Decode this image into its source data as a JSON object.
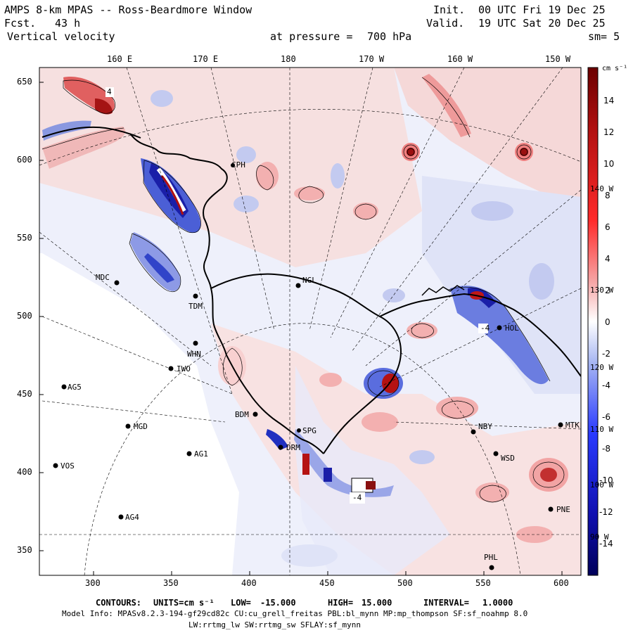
{
  "header": {
    "title": "AMPS 8-km MPAS -- Ross-Beardmore Window",
    "fcst_label": "Fcst.",
    "fcst_value": "43 h",
    "field": "Vertical velocity",
    "init_label": "Init.",
    "init_value": "00 UTC Fri 19 Dec 25",
    "valid_label": "Valid.",
    "valid_value": "19 UTC Sat 20 Dec 25",
    "pressure_label": "at pressure =",
    "pressure_value": "700 hPa",
    "smooth_label": "sm= 5"
  },
  "top_longitude_labels": [
    "160 E",
    "170 E",
    "180",
    "170 W",
    "160 W",
    "150 W"
  ],
  "right_longitude_labels": [
    "140 W",
    "130 W",
    "120 W",
    "110 W",
    "100 W",
    "90 W"
  ],
  "y_axis_ticks": [
    "650",
    "600",
    "550",
    "500",
    "450",
    "400",
    "350"
  ],
  "x_axis_ticks": [
    "300",
    "350",
    "400",
    "450",
    "500",
    "550",
    "600"
  ],
  "colorbar": {
    "units": "cm s⁻¹",
    "ticks": [
      "14",
      "12",
      "10",
      "8",
      "6",
      "4",
      "2",
      "0",
      "-2",
      "-4",
      "-6",
      "-8",
      "-10",
      "-12",
      "-14"
    ],
    "negative_color": "#0b1f8f",
    "positive_color": "#8c0c0c",
    "neutral_color": "#ffffff"
  },
  "stations": [
    {
      "name": "CPH"
    },
    {
      "name": "MDC"
    },
    {
      "name": "TDM"
    },
    {
      "name": "NGL"
    },
    {
      "name": "WHN"
    },
    {
      "name": "IWO"
    },
    {
      "name": "AG5"
    },
    {
      "name": "BDM"
    },
    {
      "name": "SPG"
    },
    {
      "name": "MGD"
    },
    {
      "name": "DRM"
    },
    {
      "name": "AG1"
    },
    {
      "name": "VOS"
    },
    {
      "name": "AG4"
    },
    {
      "name": "NBY"
    },
    {
      "name": "MTK"
    },
    {
      "name": "WSD"
    },
    {
      "name": "PNE"
    },
    {
      "name": "PHL"
    },
    {
      "name": "HOL"
    }
  ],
  "contour_labels": [
    "4",
    "-4",
    "-4"
  ],
  "footer": {
    "contours_label": "CONTOURS:",
    "units_label": "UNITS=cm s⁻¹",
    "low_label": "LOW=",
    "low_value": "-15.000",
    "high_label": "HIGH=",
    "high_value": "15.000",
    "interval_label": "INTERVAL=",
    "interval_value": "1.0000",
    "model_info": "Model Info: MPASv8.2.3-194-gf29cd82c CU:cu_grell_freitas PBL:bl_mynn MP:mp_thompson SF:sf_noahmp 8.0",
    "model_info2": "LW:rrtmg_lw SW:rrtmg_sw SFLAY:sf_mynn"
  }
}
